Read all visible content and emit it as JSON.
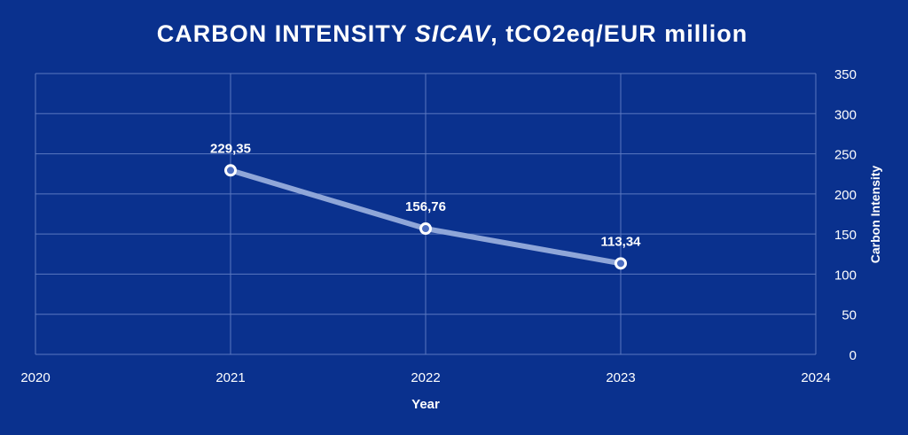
{
  "chart_data": {
    "type": "line",
    "title": "CARBON INTENSITY SICAV, tCO2eq/EUR million",
    "title_parts": [
      "CARBON INTENSITY ",
      "SICAV",
      ", tCO2eq/EUR million"
    ],
    "xlabel": "Year",
    "ylabel": "Carbon Intensity",
    "xlim": [
      2020,
      2024
    ],
    "ylim": [
      0,
      350
    ],
    "x_ticks": [
      "2020",
      "2021",
      "2022",
      "2023",
      "2024"
    ],
    "y_ticks": [
      "0",
      "50",
      "100",
      "150",
      "200",
      "250",
      "300",
      "350"
    ],
    "y_axis_position": "right",
    "grid": true,
    "legend": "none",
    "series": [
      {
        "x": [
          2021,
          2022,
          2023
        ],
        "values": [
          229.35,
          156.76,
          113.34
        ],
        "labels": [
          "229,35",
          "156,76",
          "113,34"
        ]
      }
    ],
    "colors": {
      "background": "#0a318e",
      "grid": "#5a78c0",
      "line": "#8fa6d8",
      "marker_fill": "#4a6cc0",
      "marker_stroke": "#ffffff",
      "text": "#ffffff"
    }
  }
}
